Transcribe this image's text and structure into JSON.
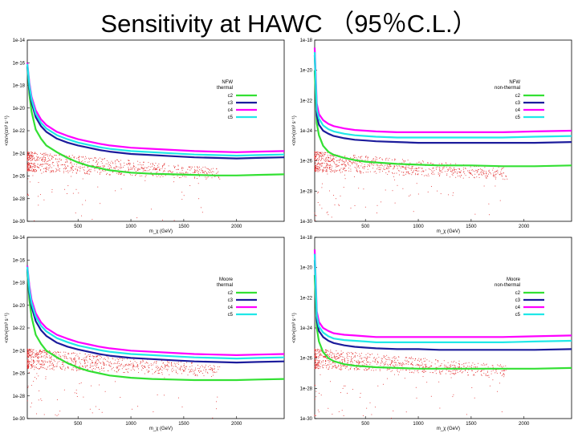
{
  "page": {
    "title": "Sensitivity at HAWC （95％C.L.）"
  },
  "chart_data": [
    {
      "type": "line",
      "xlabel": "m_χ (GeV)",
      "ylabel": "<σv>(cm³ s⁻¹)",
      "xticks": [
        500,
        1000,
        1500,
        2000
      ],
      "xlim": [
        20,
        2450
      ],
      "ytick_labels": [
        "1e-14",
        "1e-16",
        "1e-18",
        "1e-20",
        "1e-22",
        "1e-24",
        "1e-26",
        "1e-28",
        "1e-30"
      ],
      "ylim_log10": [
        -30,
        -14
      ],
      "legend": {
        "title_lines": [
          "NFW",
          "thermal"
        ],
        "entries": [
          "c2",
          "c3",
          "c4",
          "c5"
        ]
      },
      "series": [
        {
          "name": "c2",
          "color": "#33e033",
          "x": [
            20,
            40,
            60,
            100,
            150,
            200,
            300,
            400,
            500,
            600,
            700,
            800,
            1000,
            1200,
            1400,
            1600,
            1800,
            2000,
            2200,
            2450
          ],
          "y": [
            -16.3,
            -18.8,
            -20.3,
            -21.9,
            -22.7,
            -23.3,
            -23.9,
            -24.4,
            -24.8,
            -25.1,
            -25.3,
            -25.5,
            -25.7,
            -25.8,
            -25.85,
            -25.9,
            -25.95,
            -25.95,
            -25.9,
            -25.85
          ]
        },
        {
          "name": "c3",
          "color": "#1c1c9c",
          "x": [
            20,
            40,
            60,
            100,
            150,
            200,
            300,
            400,
            500,
            600,
            700,
            800,
            1000,
            1200,
            1400,
            1600,
            1800,
            2000,
            2200,
            2450
          ],
          "y": [
            -16.3,
            -18.3,
            -19.5,
            -20.8,
            -21.6,
            -22.1,
            -22.7,
            -23.05,
            -23.3,
            -23.5,
            -23.7,
            -23.85,
            -24.05,
            -24.15,
            -24.25,
            -24.35,
            -24.4,
            -24.45,
            -24.4,
            -24.35
          ]
        },
        {
          "name": "c4",
          "color": "#ff00ff",
          "x": [
            20,
            40,
            60,
            100,
            150,
            200,
            300,
            400,
            500,
            600,
            700,
            800,
            1000,
            1200,
            1400,
            1600,
            1800,
            2000,
            2200,
            2450
          ],
          "y": [
            -16.0,
            -17.8,
            -19.0,
            -20.2,
            -21.0,
            -21.5,
            -22.1,
            -22.45,
            -22.75,
            -22.95,
            -23.15,
            -23.3,
            -23.5,
            -23.6,
            -23.7,
            -23.8,
            -23.85,
            -23.9,
            -23.85,
            -23.8
          ]
        },
        {
          "name": "c5",
          "color": "#20e8e8",
          "x": [
            20,
            40,
            60,
            100,
            150,
            200,
            300,
            400,
            500,
            600,
            700,
            800,
            1000,
            1200,
            1400,
            1600,
            1800,
            2000,
            2200,
            2450
          ],
          "y": [
            -16.1,
            -18.0,
            -19.2,
            -20.5,
            -21.3,
            -21.8,
            -22.4,
            -22.75,
            -23.05,
            -23.25,
            -23.45,
            -23.6,
            -23.8,
            -23.9,
            -24.0,
            -24.1,
            -24.15,
            -24.2,
            -24.15,
            -24.1
          ]
        }
      ]
    },
    {
      "type": "line",
      "xlabel": "m_χ (GeV)",
      "ylabel": "<σv>(cm³ s⁻¹)",
      "xticks": [
        500,
        1000,
        1500,
        2000
      ],
      "xlim": [
        20,
        2450
      ],
      "ytick_labels": [
        "1e-18",
        "1e-20",
        "1e-22",
        "1e-24",
        "1e-26",
        "1e-28",
        "1e-30"
      ],
      "ylim_log10": [
        -30,
        -18
      ],
      "legend": {
        "title_lines": [
          "NFW",
          "non-thermal"
        ],
        "entries": [
          "c2",
          "c3",
          "c4",
          "c5"
        ]
      },
      "series": [
        {
          "name": "c2",
          "color": "#33e033",
          "x": [
            20,
            40,
            60,
            100,
            150,
            200,
            300,
            400,
            500,
            600,
            800,
            1000,
            1200,
            1500,
            1800,
            2100,
            2450
          ],
          "y": [
            -20.0,
            -23.5,
            -24.3,
            -25.0,
            -25.4,
            -25.6,
            -25.8,
            -25.95,
            -26.05,
            -26.1,
            -26.2,
            -26.25,
            -26.3,
            -26.3,
            -26.35,
            -26.35,
            -26.3
          ]
        },
        {
          "name": "c3",
          "color": "#1c1c9c",
          "x": [
            20,
            40,
            60,
            100,
            150,
            200,
            300,
            400,
            500,
            600,
            800,
            1000,
            1200,
            1500,
            1800,
            2100,
            2450
          ],
          "y": [
            -19.0,
            -23.0,
            -23.6,
            -24.0,
            -24.2,
            -24.35,
            -24.5,
            -24.6,
            -24.65,
            -24.7,
            -24.75,
            -24.8,
            -24.8,
            -24.8,
            -24.8,
            -24.8,
            -24.75
          ]
        },
        {
          "name": "c4",
          "color": "#ff00ff",
          "x": [
            20,
            40,
            60,
            100,
            150,
            200,
            300,
            400,
            500,
            600,
            800,
            1000,
            1200,
            1500,
            1800,
            2100,
            2450
          ],
          "y": [
            -18.5,
            -22.2,
            -22.9,
            -23.3,
            -23.55,
            -23.7,
            -23.85,
            -23.95,
            -24.0,
            -24.05,
            -24.1,
            -24.1,
            -24.1,
            -24.1,
            -24.1,
            -24.05,
            -24.0
          ]
        },
        {
          "name": "c5",
          "color": "#20e8e8",
          "x": [
            20,
            40,
            60,
            100,
            150,
            200,
            300,
            400,
            500,
            600,
            800,
            1000,
            1200,
            1500,
            1800,
            2100,
            2450
          ],
          "y": [
            -18.8,
            -22.6,
            -23.2,
            -23.65,
            -23.9,
            -24.05,
            -24.2,
            -24.3,
            -24.35,
            -24.4,
            -24.45,
            -24.45,
            -24.45,
            -24.45,
            -24.45,
            -24.4,
            -24.35
          ]
        }
      ]
    },
    {
      "type": "line",
      "xlabel": "m_χ (GeV)",
      "ylabel": "<σv>(cm³ s⁻¹)",
      "xticks": [
        500,
        1000,
        1500,
        2000
      ],
      "xlim": [
        20,
        2450
      ],
      "ytick_labels": [
        "1e-14",
        "1e-16",
        "1e-18",
        "1e-20",
        "1e-22",
        "1e-24",
        "1e-26",
        "1e-28",
        "1e-30"
      ],
      "ylim_log10": [
        -30,
        -14
      ],
      "legend": {
        "title_lines": [
          "Moore",
          "thermal"
        ],
        "entries": [
          "c2",
          "c3",
          "c4",
          "c5"
        ]
      },
      "series": [
        {
          "name": "c2",
          "color": "#33e033",
          "x": [
            20,
            40,
            60,
            100,
            150,
            200,
            300,
            400,
            500,
            600,
            700,
            800,
            1000,
            1200,
            1400,
            1600,
            1800,
            2000,
            2200,
            2450
          ],
          "y": [
            -17.0,
            -19.5,
            -21.0,
            -22.6,
            -23.4,
            -24.0,
            -24.6,
            -25.1,
            -25.5,
            -25.8,
            -26.0,
            -26.2,
            -26.4,
            -26.5,
            -26.55,
            -26.6,
            -26.6,
            -26.6,
            -26.55,
            -26.5
          ]
        },
        {
          "name": "c3",
          "color": "#1c1c9c",
          "x": [
            20,
            40,
            60,
            100,
            150,
            200,
            300,
            400,
            500,
            600,
            700,
            800,
            1000,
            1200,
            1400,
            1600,
            1800,
            2000,
            2200,
            2450
          ],
          "y": [
            -16.8,
            -18.9,
            -20.1,
            -21.4,
            -22.2,
            -22.7,
            -23.3,
            -23.65,
            -23.9,
            -24.1,
            -24.3,
            -24.45,
            -24.65,
            -24.75,
            -24.85,
            -24.95,
            -25.0,
            -25.05,
            -25.0,
            -24.95
          ]
        },
        {
          "name": "c4",
          "color": "#ff00ff",
          "x": [
            20,
            40,
            60,
            100,
            150,
            200,
            300,
            400,
            500,
            600,
            700,
            800,
            1000,
            1200,
            1400,
            1600,
            1800,
            2000,
            2200,
            2450
          ],
          "y": [
            -16.5,
            -18.3,
            -19.5,
            -20.7,
            -21.5,
            -22.0,
            -22.6,
            -22.95,
            -23.25,
            -23.45,
            -23.65,
            -23.8,
            -24.0,
            -24.1,
            -24.2,
            -24.3,
            -24.35,
            -24.4,
            -24.35,
            -24.3
          ]
        },
        {
          "name": "c5",
          "color": "#20e8e8",
          "x": [
            20,
            40,
            60,
            100,
            150,
            200,
            300,
            400,
            500,
            600,
            700,
            800,
            1000,
            1200,
            1400,
            1600,
            1800,
            2000,
            2200,
            2450
          ],
          "y": [
            -16.6,
            -18.6,
            -19.8,
            -21.0,
            -21.8,
            -22.3,
            -22.9,
            -23.25,
            -23.55,
            -23.75,
            -23.95,
            -24.1,
            -24.3,
            -24.4,
            -24.5,
            -24.6,
            -24.65,
            -24.7,
            -24.65,
            -24.6
          ]
        }
      ]
    },
    {
      "type": "line",
      "xlabel": "m_χ (GeV)",
      "ylabel": "<σv>(cm³ s⁻¹)",
      "xticks": [
        500,
        1000,
        1500,
        2000
      ],
      "xlim": [
        20,
        2450
      ],
      "ytick_labels": [
        "1e-18",
        "1e-20",
        "1e-22",
        "1e-24",
        "1e-26",
        "1e-28",
        "1e-30"
      ],
      "ylim_log10": [
        -30,
        -18
      ],
      "legend": {
        "title_lines": [
          "Moore",
          "non-thermal"
        ],
        "entries": [
          "c2",
          "c3",
          "c4",
          "c5"
        ]
      },
      "series": [
        {
          "name": "c2",
          "color": "#33e033",
          "x": [
            20,
            40,
            60,
            100,
            150,
            200,
            300,
            400,
            500,
            600,
            800,
            1000,
            1200,
            1500,
            1800,
            2100,
            2450
          ],
          "y": [
            -20.5,
            -24.0,
            -24.9,
            -25.6,
            -26.0,
            -26.2,
            -26.4,
            -26.5,
            -26.55,
            -26.6,
            -26.65,
            -26.7,
            -26.7,
            -26.7,
            -26.7,
            -26.7,
            -26.65
          ]
        },
        {
          "name": "c3",
          "color": "#1c1c9c",
          "x": [
            20,
            40,
            60,
            100,
            150,
            200,
            300,
            400,
            500,
            600,
            800,
            1000,
            1200,
            1500,
            1800,
            2100,
            2450
          ],
          "y": [
            -19.5,
            -23.5,
            -24.2,
            -24.6,
            -24.85,
            -25.0,
            -25.15,
            -25.25,
            -25.3,
            -25.35,
            -25.4,
            -25.4,
            -25.45,
            -25.45,
            -25.45,
            -25.45,
            -25.4
          ]
        },
        {
          "name": "c4",
          "color": "#ff00ff",
          "x": [
            20,
            40,
            60,
            100,
            150,
            200,
            300,
            400,
            500,
            600,
            800,
            1000,
            1200,
            1500,
            1800,
            2100,
            2450
          ],
          "y": [
            -18.8,
            -22.9,
            -23.6,
            -24.0,
            -24.2,
            -24.35,
            -24.45,
            -24.5,
            -24.55,
            -24.6,
            -24.6,
            -24.6,
            -24.6,
            -24.6,
            -24.6,
            -24.55,
            -24.5
          ]
        },
        {
          "name": "c5",
          "color": "#20e8e8",
          "x": [
            20,
            40,
            60,
            100,
            150,
            200,
            300,
            400,
            500,
            600,
            800,
            1000,
            1200,
            1500,
            1800,
            2100,
            2450
          ],
          "y": [
            -19.1,
            -23.2,
            -23.9,
            -24.3,
            -24.55,
            -24.7,
            -24.8,
            -24.85,
            -24.9,
            -24.95,
            -24.95,
            -24.95,
            -24.95,
            -24.95,
            -24.95,
            -24.9,
            -24.85
          ]
        }
      ]
    }
  ]
}
